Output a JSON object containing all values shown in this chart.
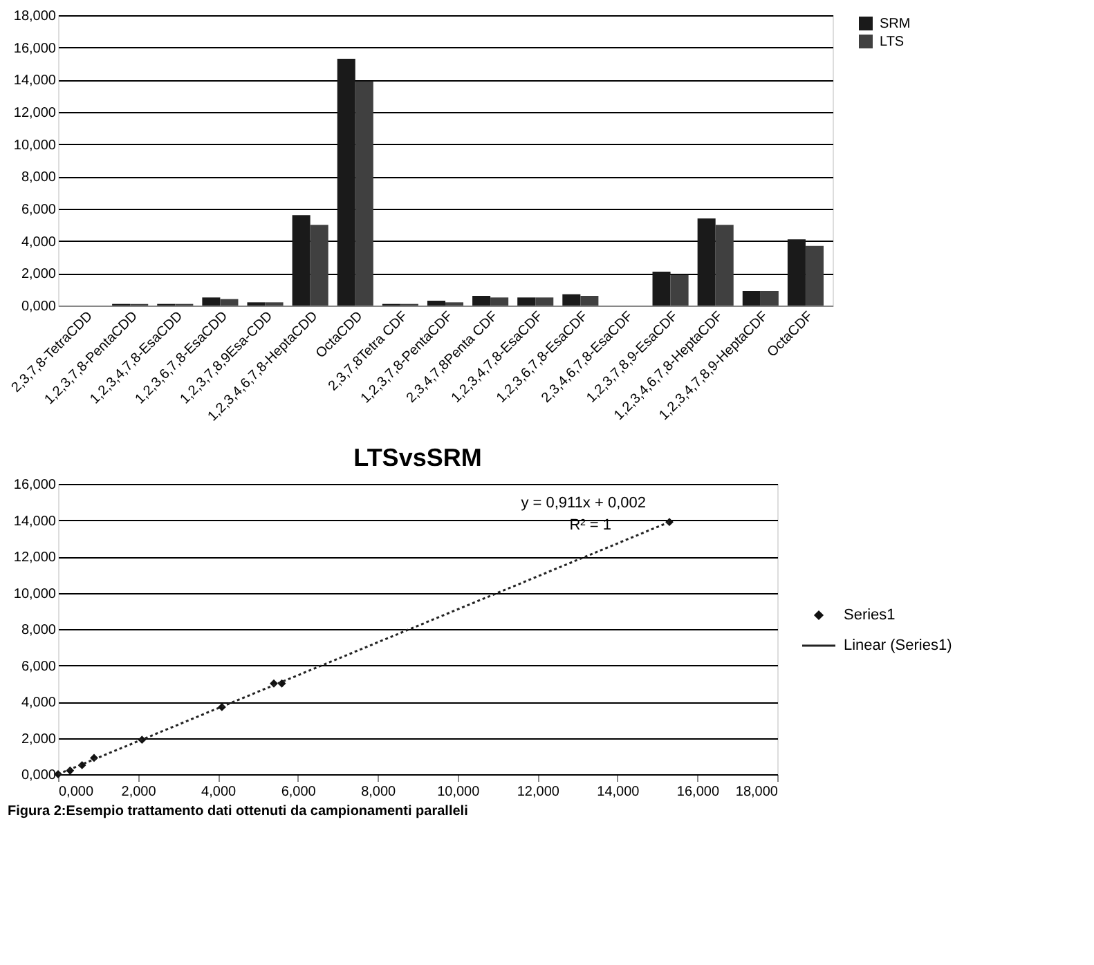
{
  "chart_data": [
    {
      "type": "bar",
      "categories": [
        "2,3,7,8-TetraCDD",
        "1,2,3,7,8-PentaCDD",
        "1,2,3,4,7,8-EsaCDD",
        "1,2,3,6,7,8-EsaCDD",
        "1,2,3,7,8,9Esa-CDD",
        "1,2,3,4,6,7,8-HeptaCDD",
        "OctaCDD",
        "2,3,7,8Tetra CDF",
        "1,2,3,7,8-PentaCDF",
        "2,3,4,7,8Penta CDF",
        "1,2,3,4,7,8-EsaCDF",
        "1,2,3,6,7,8-EsaCDF",
        "2,3,4,6,7,8-EsaCDF",
        "1,2,3,7,8,9-EsaCDF",
        "1,2,3,4,6,7,8-HeptaCDF",
        "1,2,3,4,7,8,9-HeptaCDF",
        "OctaCDF"
      ],
      "series": [
        {
          "name": "SRM",
          "color": "#1a1a1a",
          "values": [
            0,
            0.1,
            0.1,
            0.5,
            0.2,
            5.6,
            15.3,
            0.1,
            0.3,
            0.6,
            0.5,
            0.7,
            0,
            2.1,
            5.4,
            0.9,
            4.1
          ]
        },
        {
          "name": "LTS",
          "color": "#404040",
          "values": [
            0,
            0.1,
            0.1,
            0.4,
            0.2,
            5.0,
            13.9,
            0.1,
            0.2,
            0.5,
            0.5,
            0.6,
            0,
            1.9,
            5.0,
            0.9,
            3.7
          ]
        }
      ],
      "ylim": [
        0,
        18
      ],
      "yticks": [
        {
          "value": 0,
          "label": "0,000"
        },
        {
          "value": 2,
          "label": "2,000"
        },
        {
          "value": 4,
          "label": "4,000"
        },
        {
          "value": 6,
          "label": "6,000"
        },
        {
          "value": 8,
          "label": "8,000"
        },
        {
          "value": 10,
          "label": "10,000"
        },
        {
          "value": 12,
          "label": "12,000"
        },
        {
          "value": 14,
          "label": "14,000"
        },
        {
          "value": 16,
          "label": "16,000"
        },
        {
          "value": 18,
          "label": "18,000"
        }
      ],
      "grid": "y",
      "legend": "right"
    },
    {
      "type": "scatter",
      "title": "LTSvsSRM",
      "series": [
        {
          "name": "Series1",
          "color": "#111111",
          "marker": "diamond",
          "x": [
            0,
            0.3,
            0.6,
            0.9,
            2.1,
            4.1,
            5.4,
            5.6,
            15.3
          ],
          "values": [
            0,
            0.2,
            0.5,
            0.9,
            1.9,
            3.7,
            5.0,
            5.0,
            13.9
          ]
        },
        {
          "name": "Linear (Series1)",
          "type": "line",
          "line_style": "dotted",
          "color": "#222222",
          "x": [
            0,
            15.3
          ],
          "values": [
            0,
            13.9
          ]
        }
      ],
      "xlim": [
        0,
        18
      ],
      "xticks": [
        {
          "value": 0,
          "label": "0,000"
        },
        {
          "value": 2,
          "label": "2,000"
        },
        {
          "value": 4,
          "label": "4,000"
        },
        {
          "value": 6,
          "label": "6,000"
        },
        {
          "value": 8,
          "label": "8,000"
        },
        {
          "value": 10,
          "label": "10,000"
        },
        {
          "value": 12,
          "label": "12,000"
        },
        {
          "value": 14,
          "label": "14,000"
        },
        {
          "value": 16,
          "label": "16,000"
        },
        {
          "value": 18,
          "label": "18,000"
        }
      ],
      "ylim": [
        0,
        16
      ],
      "yticks": [
        {
          "value": 0,
          "label": "0,000"
        },
        {
          "value": 2,
          "label": "2,000"
        },
        {
          "value": 4,
          "label": "4,000"
        },
        {
          "value": 6,
          "label": "6,000"
        },
        {
          "value": 8,
          "label": "8,000"
        },
        {
          "value": 10,
          "label": "10,000"
        },
        {
          "value": 12,
          "label": "12,000"
        },
        {
          "value": 14,
          "label": "14,000"
        },
        {
          "value": 16,
          "label": "16,000"
        }
      ],
      "annotations": [
        "y = 0,911x + 0,002",
        "R² = 1",
        "Figura 2:Esempio trattamento dati ottenuti da campionamenti paralleli"
      ],
      "grid": "y",
      "legend": "right"
    }
  ]
}
